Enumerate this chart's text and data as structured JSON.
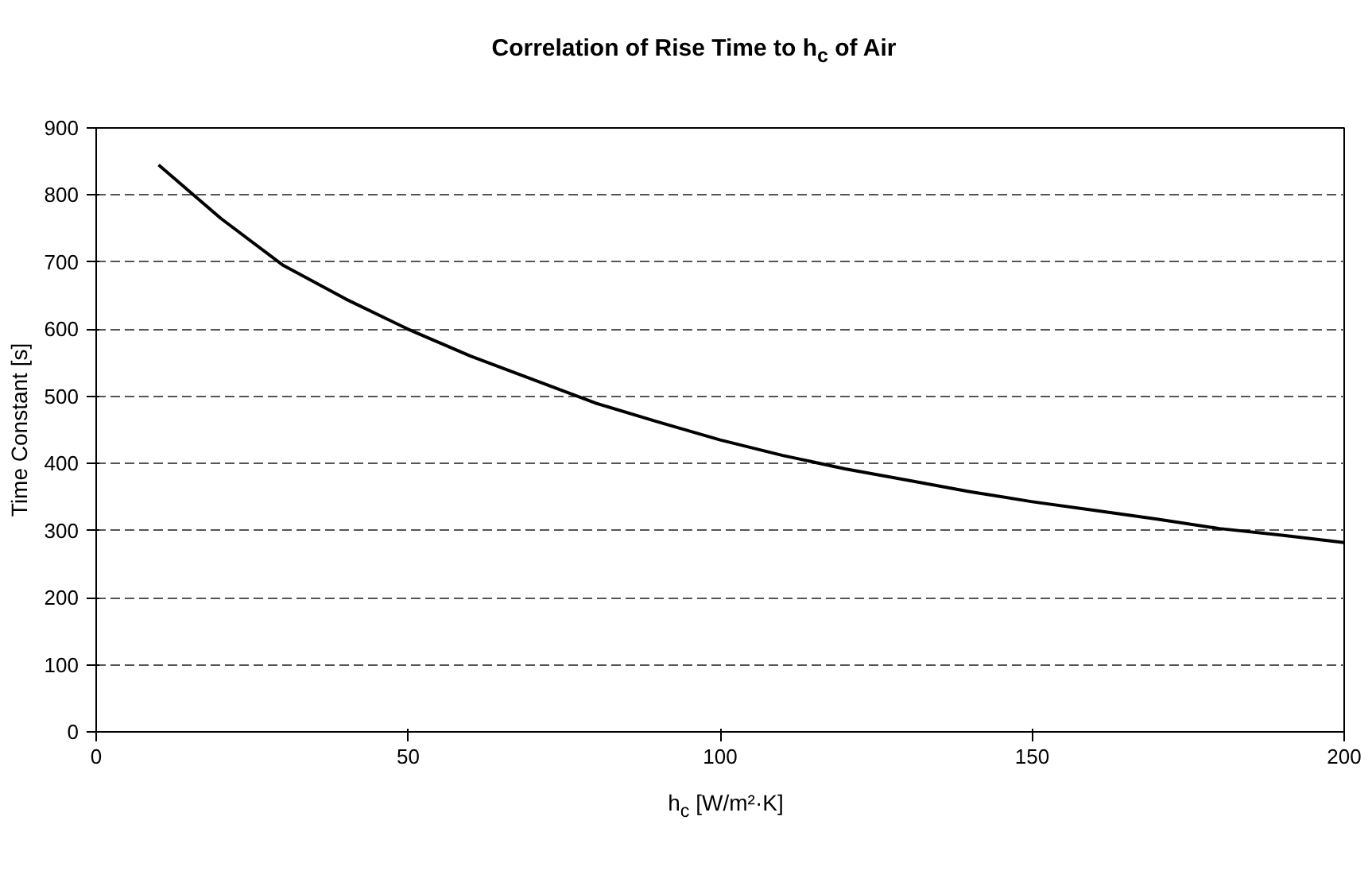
{
  "chart_data": {
    "type": "line",
    "title": "Correlation of Rise Time to h$_{c}$ of Air",
    "xlabel": "h$_{c}$ [W/m²·K]",
    "ylabel": "Time Constant [s]",
    "x": [
      10,
      20,
      30,
      40,
      50,
      60,
      70,
      80,
      90,
      100,
      110,
      120,
      130,
      140,
      150,
      160,
      170,
      180,
      190,
      200
    ],
    "series": [
      {
        "color": "#000000",
        "values": [
          845,
          765,
          695,
          645,
          600,
          560,
          525,
          490,
          462,
          435,
          412,
          392,
          375,
          358,
          343,
          330,
          317,
          303,
          293,
          282
        ]
      }
    ],
    "xlim": [
      0,
      200
    ],
    "xticks": [
      0,
      50,
      100,
      150,
      200
    ],
    "ylim": [
      0,
      900
    ],
    "yticks": [
      0,
      100,
      200,
      300,
      400,
      500,
      600,
      700,
      800,
      900
    ],
    "grid": "y",
    "marker": "none",
    "line_style": "solid"
  }
}
